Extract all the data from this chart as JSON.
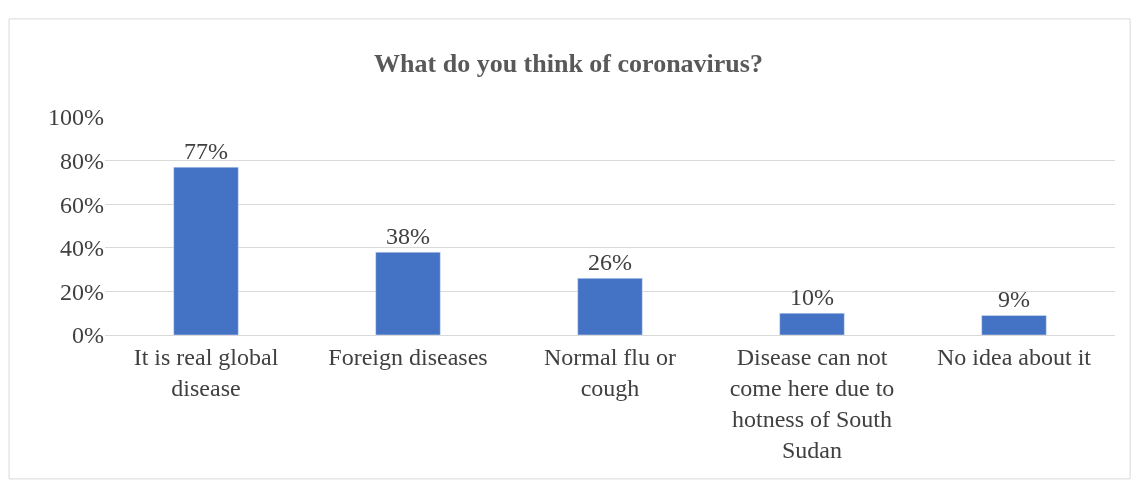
{
  "chart_data": {
    "type": "bar",
    "title": "What do you think of coronavirus?",
    "categories": [
      "It is real global\ndisease",
      "Foreign diseases",
      "Normal flu or\ncough",
      "Disease can not\ncome here due to\nhotness of South\nSudan",
      "No idea about it"
    ],
    "values": [
      77,
      38,
      26,
      10,
      9
    ],
    "value_labels": [
      "77%",
      "38%",
      "26%",
      "10%",
      "9%"
    ],
    "color": "#4472c4",
    "ylim": [
      0,
      100
    ],
    "yticks": [
      {
        "value": 0,
        "label": "0%"
      },
      {
        "value": 20,
        "label": "20%"
      },
      {
        "value": 40,
        "label": "40%"
      },
      {
        "value": 60,
        "label": "60%"
      },
      {
        "value": 80,
        "label": "80%"
      },
      {
        "value": 100,
        "label": "100%"
      }
    ],
    "grid": "y",
    "legend": false
  }
}
